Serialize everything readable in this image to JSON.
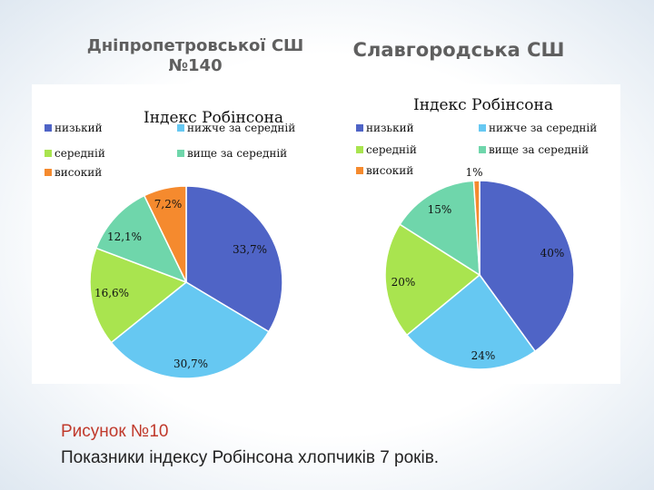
{
  "header": {
    "left_school": "Дніпропетровської СШ №140",
    "right_school": "Славгородська СШ"
  },
  "caption": {
    "title": "Рисунок №10",
    "text": "Показники індексу Робінсона хлопчиків 7 років."
  },
  "chart_data": [
    {
      "type": "pie",
      "title": "Індекс Робінсона",
      "categories": [
        "низький",
        "нижче за середній",
        "середній",
        "вище за середній",
        "високий"
      ],
      "values": [
        33.7,
        30.7,
        16.6,
        12.1,
        7.2
      ],
      "labels": [
        "33,7%",
        "30,7%",
        "16,6%",
        "12,1%",
        "7,2%"
      ],
      "colors": [
        "#4f64c6",
        "#66c8f2",
        "#a9e44f",
        "#6fd6ab",
        "#f58a2e"
      ],
      "legend_position": "top"
    },
    {
      "type": "pie",
      "title": "Індекс Робінсона",
      "categories": [
        "низький",
        "нижче за середній",
        "середній",
        "вище за середній",
        "високий"
      ],
      "values": [
        40,
        24,
        20,
        15,
        1
      ],
      "labels": [
        "40%",
        "24%",
        "20%",
        "15%",
        "1%"
      ],
      "colors": [
        "#4f64c6",
        "#66c8f2",
        "#a9e44f",
        "#6fd6ab",
        "#f58a2e"
      ],
      "legend_position": "top"
    }
  ]
}
